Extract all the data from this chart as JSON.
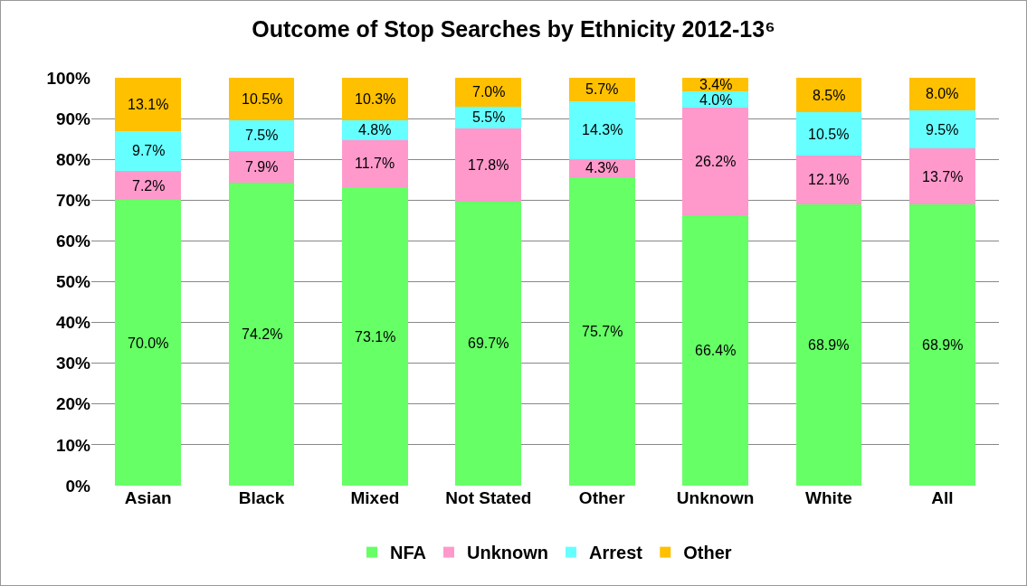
{
  "chart_data": {
    "type": "bar",
    "title": "Outcome of Stop Searches by Ethnicity 2012-13⁶",
    "stacked": true,
    "categories": [
      "Asian",
      "Black",
      "Mixed",
      "Not Stated",
      "Other",
      "Unknown",
      "White",
      "All"
    ],
    "series": [
      {
        "name": "NFA",
        "color": "#66ff66",
        "values": [
          70.0,
          74.2,
          73.1,
          69.7,
          75.7,
          66.4,
          68.9,
          68.9
        ],
        "value_labels": [
          "70.0%",
          "74.2%",
          "73.1%",
          "69.7%",
          "75.7%",
          "66.4%",
          "68.9%",
          "68.9%"
        ]
      },
      {
        "name": "Unknown",
        "color": "#ff99cc",
        "values": [
          7.2,
          7.9,
          11.7,
          17.8,
          4.3,
          26.2,
          12.1,
          13.7
        ],
        "value_labels": [
          "7.2%",
          "7.9%",
          "11.7%",
          "17.8%",
          "4.3%",
          "26.2%",
          "12.1%",
          "13.7%"
        ]
      },
      {
        "name": "Arrest",
        "color": "#66ffff",
        "values": [
          9.7,
          7.5,
          4.8,
          5.5,
          14.3,
          4.0,
          10.5,
          9.5
        ],
        "value_labels": [
          "9.7%",
          "7.5%",
          "4.8%",
          "5.5%",
          "14.3%",
          "4.0%",
          "10.5%",
          "9.5%"
        ]
      },
      {
        "name": "Other",
        "color": "#ffc000",
        "values": [
          13.1,
          10.5,
          10.3,
          7.0,
          5.7,
          3.4,
          8.5,
          8.0
        ],
        "value_labels": [
          "13.1%",
          "10.5%",
          "10.3%",
          "7.0%",
          "5.7%",
          "3.4%",
          "8.5%",
          "8.0%"
        ]
      }
    ],
    "ylim": [
      0,
      100
    ],
    "yticks": [
      {
        "value": 0,
        "label": "0%"
      },
      {
        "value": 10,
        "label": "10%"
      },
      {
        "value": 20,
        "label": "20%"
      },
      {
        "value": 30,
        "label": "30%"
      },
      {
        "value": 40,
        "label": "40%"
      },
      {
        "value": 50,
        "label": "50%"
      },
      {
        "value": 60,
        "label": "60%"
      },
      {
        "value": 70,
        "label": "70%"
      },
      {
        "value": 80,
        "label": "80%"
      },
      {
        "value": 90,
        "label": "90%"
      },
      {
        "value": 100,
        "label": "100%"
      }
    ],
    "grid": "y",
    "legend": "bottom"
  }
}
